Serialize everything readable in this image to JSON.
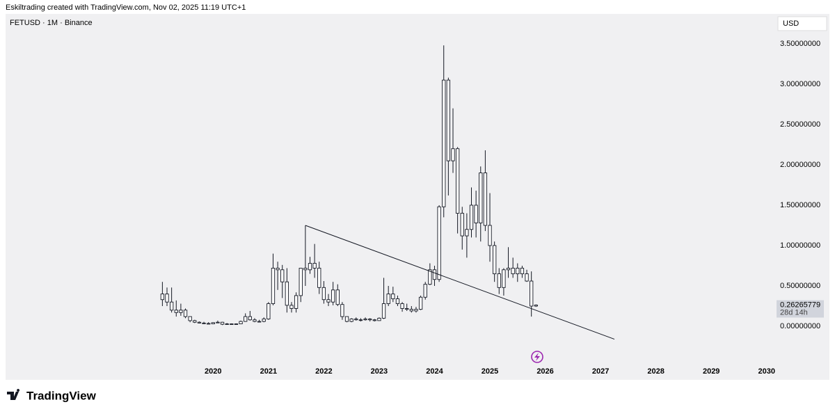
{
  "header": {
    "title": "Eskiltrading created with TradingView.com, Nov 02, 2025 11:19 UTC+1"
  },
  "chart_data": {
    "type": "candlestick",
    "title": "FETUSD · 1M · Binance",
    "currency": "USD",
    "x": [
      "2019-02",
      "2019-03",
      "2019-04",
      "2019-05",
      "2019-06",
      "2019-07",
      "2019-08",
      "2019-09",
      "2019-10",
      "2019-11",
      "2019-12",
      "2020-01",
      "2020-02",
      "2020-03",
      "2020-04",
      "2020-05",
      "2020-06",
      "2020-07",
      "2020-08",
      "2020-09",
      "2020-10",
      "2020-11",
      "2020-12",
      "2021-01",
      "2021-02",
      "2021-03",
      "2021-04",
      "2021-05",
      "2021-06",
      "2021-07",
      "2021-08",
      "2021-09",
      "2021-10",
      "2021-11",
      "2021-12",
      "2022-01",
      "2022-02",
      "2022-03",
      "2022-04",
      "2022-05",
      "2022-06",
      "2022-07",
      "2022-08",
      "2022-09",
      "2022-10",
      "2022-11",
      "2022-12",
      "2023-01",
      "2023-02",
      "2023-03",
      "2023-04",
      "2023-05",
      "2023-06",
      "2023-07",
      "2023-08",
      "2023-09",
      "2023-10",
      "2023-11",
      "2023-12",
      "2024-01",
      "2024-02",
      "2024-03",
      "2024-04",
      "2024-05",
      "2024-06",
      "2024-07",
      "2024-08",
      "2024-09",
      "2024-10",
      "2024-11",
      "2024-12",
      "2025-01",
      "2025-02",
      "2025-03",
      "2025-04",
      "2025-05",
      "2025-06",
      "2025-07",
      "2025-08",
      "2025-09",
      "2025-10",
      "2025-11"
    ],
    "open": [
      0.33,
      0.4,
      0.3,
      0.2,
      0.17,
      0.2,
      0.12,
      0.07,
      0.05,
      0.04,
      0.035,
      0.03,
      0.045,
      0.05,
      0.025,
      0.03,
      0.025,
      0.03,
      0.06,
      0.12,
      0.08,
      0.06,
      0.06,
      0.09,
      0.28,
      0.72,
      0.7,
      0.55,
      0.26,
      0.22,
      0.38,
      0.72,
      0.7,
      0.78,
      0.72,
      0.48,
      0.33,
      0.3,
      0.45,
      0.27,
      0.12,
      0.06,
      0.09,
      0.08,
      0.08,
      0.09,
      0.08,
      0.07,
      0.1,
      0.28,
      0.4,
      0.34,
      0.28,
      0.22,
      0.21,
      0.19,
      0.21,
      0.36,
      0.52,
      0.7,
      0.58,
      1.48,
      3.05,
      2.05,
      2.2,
      1.4,
      1.12,
      1.2,
      1.5,
      1.28,
      1.9,
      1.25,
      1.0,
      0.65,
      0.48,
      0.7,
      0.72,
      0.65,
      0.72,
      0.65,
      0.56,
      0.25
    ],
    "high": [
      0.55,
      0.48,
      0.48,
      0.32,
      0.28,
      0.22,
      0.12,
      0.08,
      0.06,
      0.055,
      0.05,
      0.05,
      0.07,
      0.055,
      0.04,
      0.035,
      0.035,
      0.07,
      0.16,
      0.19,
      0.1,
      0.08,
      0.11,
      0.3,
      0.9,
      0.8,
      0.76,
      0.72,
      0.3,
      0.42,
      0.72,
      1.25,
      0.86,
      1.02,
      0.8,
      0.56,
      0.4,
      0.55,
      0.52,
      0.3,
      0.12,
      0.1,
      0.11,
      0.1,
      0.11,
      0.1,
      0.09,
      0.11,
      0.6,
      0.5,
      0.49,
      0.38,
      0.3,
      0.28,
      0.25,
      0.24,
      0.38,
      0.55,
      0.78,
      0.75,
      1.5,
      3.48,
      3.08,
      2.7,
      2.22,
      1.48,
      1.4,
      1.72,
      1.68,
      1.98,
      2.18,
      1.65,
      1.05,
      0.72,
      0.72,
      0.98,
      0.85,
      0.78,
      0.75,
      0.7,
      0.68,
      0.27
    ],
    "low": [
      0.25,
      0.25,
      0.17,
      0.12,
      0.13,
      0.1,
      0.05,
      0.04,
      0.035,
      0.03,
      0.025,
      0.028,
      0.04,
      0.015,
      0.02,
      0.02,
      0.02,
      0.03,
      0.055,
      0.07,
      0.05,
      0.05,
      0.05,
      0.08,
      0.26,
      0.45,
      0.35,
      0.17,
      0.17,
      0.17,
      0.3,
      0.5,
      0.65,
      0.6,
      0.4,
      0.28,
      0.25,
      0.26,
      0.25,
      0.08,
      0.05,
      0.05,
      0.07,
      0.06,
      0.07,
      0.06,
      0.06,
      0.07,
      0.09,
      0.25,
      0.3,
      0.25,
      0.18,
      0.19,
      0.17,
      0.17,
      0.2,
      0.33,
      0.51,
      0.5,
      0.55,
      1.35,
      1.62,
      1.9,
      1.15,
      0.95,
      0.85,
      1.1,
      1.1,
      1.05,
      1.18,
      0.8,
      0.55,
      0.4,
      0.38,
      0.6,
      0.6,
      0.55,
      0.6,
      0.55,
      0.12,
      0.24
    ],
    "close": [
      0.4,
      0.3,
      0.2,
      0.17,
      0.2,
      0.12,
      0.07,
      0.05,
      0.04,
      0.035,
      0.03,
      0.045,
      0.05,
      0.025,
      0.03,
      0.025,
      0.03,
      0.06,
      0.12,
      0.08,
      0.06,
      0.06,
      0.09,
      0.28,
      0.72,
      0.7,
      0.55,
      0.26,
      0.22,
      0.38,
      0.72,
      0.7,
      0.78,
      0.72,
      0.48,
      0.33,
      0.3,
      0.45,
      0.27,
      0.12,
      0.06,
      0.09,
      0.08,
      0.08,
      0.09,
      0.08,
      0.07,
      0.1,
      0.28,
      0.4,
      0.34,
      0.28,
      0.22,
      0.21,
      0.19,
      0.21,
      0.36,
      0.52,
      0.7,
      0.58,
      1.48,
      3.05,
      2.05,
      2.2,
      1.4,
      1.12,
      1.2,
      1.5,
      1.28,
      1.9,
      1.25,
      1.0,
      0.65,
      0.48,
      0.7,
      0.72,
      0.65,
      0.72,
      0.65,
      0.56,
      0.25,
      0.26265779
    ],
    "trendline": {
      "x": [
        "2021-09",
        "2027-04"
      ],
      "y": [
        1.25,
        -0.16
      ]
    },
    "xlim": [
      "2016-04",
      "2030-03"
    ],
    "xticks": [
      "2020",
      "2021",
      "2022",
      "2023",
      "2024",
      "2025",
      "2026",
      "2027",
      "2028",
      "2029",
      "2030"
    ],
    "ylim": [
      -0.655,
      3.87
    ],
    "yticks": [
      {
        "value": 0,
        "label": "0.00000000"
      },
      {
        "value": 0.5,
        "label": "0.50000000"
      },
      {
        "value": 1,
        "label": "1.00000000"
      },
      {
        "value": 1.5,
        "label": "1.50000000"
      },
      {
        "value": 2,
        "label": "2.00000000"
      },
      {
        "value": 2.5,
        "label": "2.50000000"
      },
      {
        "value": 3,
        "label": "3.00000000"
      },
      {
        "value": 3.5,
        "label": "3.50000000"
      }
    ],
    "last_price_label": "0.26265779",
    "countdown": "28d 14h",
    "color": "#131722",
    "grid": false
  },
  "footer": {
    "brand": "TradingView"
  }
}
